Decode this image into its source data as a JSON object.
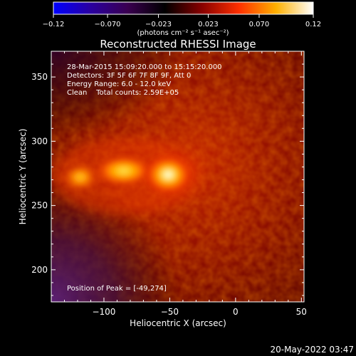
{
  "chart_data": {
    "type": "heatmap",
    "title": "Reconstructed RHESSI Image",
    "xlabel": "Heliocentric X (arcsec)",
    "ylabel": "Heliocentric Y (arcsec)",
    "xlim": [
      -140,
      52
    ],
    "ylim": [
      175,
      370
    ],
    "xticks": [
      -100,
      -50,
      0,
      50
    ],
    "yticks": [
      200,
      250,
      300,
      350
    ],
    "xtick_labels": [
      "−100",
      "−50",
      "0",
      "50"
    ],
    "ytick_labels": [
      "200",
      "250",
      "300",
      "350"
    ],
    "colorbar": {
      "range": [
        -0.12,
        0.12
      ],
      "ticks": [
        -0.12,
        -0.07,
        -0.023,
        0.023,
        0.07,
        0.12
      ],
      "tick_labels": [
        "−0.12",
        "−0.070",
        "−0.023",
        "0.023",
        "0.070",
        "0.12"
      ],
      "colors": [
        "#0000ff",
        "#2a00a0",
        "#3a0050",
        "#000000",
        "#880000",
        "#ff3000",
        "#ffb000",
        "#ffffff"
      ],
      "units_label": "(photons cm⁻² s⁻¹ asec⁻²)"
    },
    "annotations": [
      "28-Mar-2015 15:09:20.000 to 15:15:20.000",
      "Detectors: 3F 5F 6F 7F 8F 9F, Att 0",
      "Energy Range: 6.0 - 12.0 keV",
      "Clean    Total counts: 2.59E+05"
    ],
    "peak_label": "Position of Peak = [-49,274]",
    "peak": {
      "x": -49,
      "y": 274,
      "value": 0.12
    },
    "source": {
      "main_x": -49,
      "main_y": 274,
      "tail_x": -85,
      "tail_y": 277
    }
  },
  "footer_date": "20-May-2022 03:47"
}
